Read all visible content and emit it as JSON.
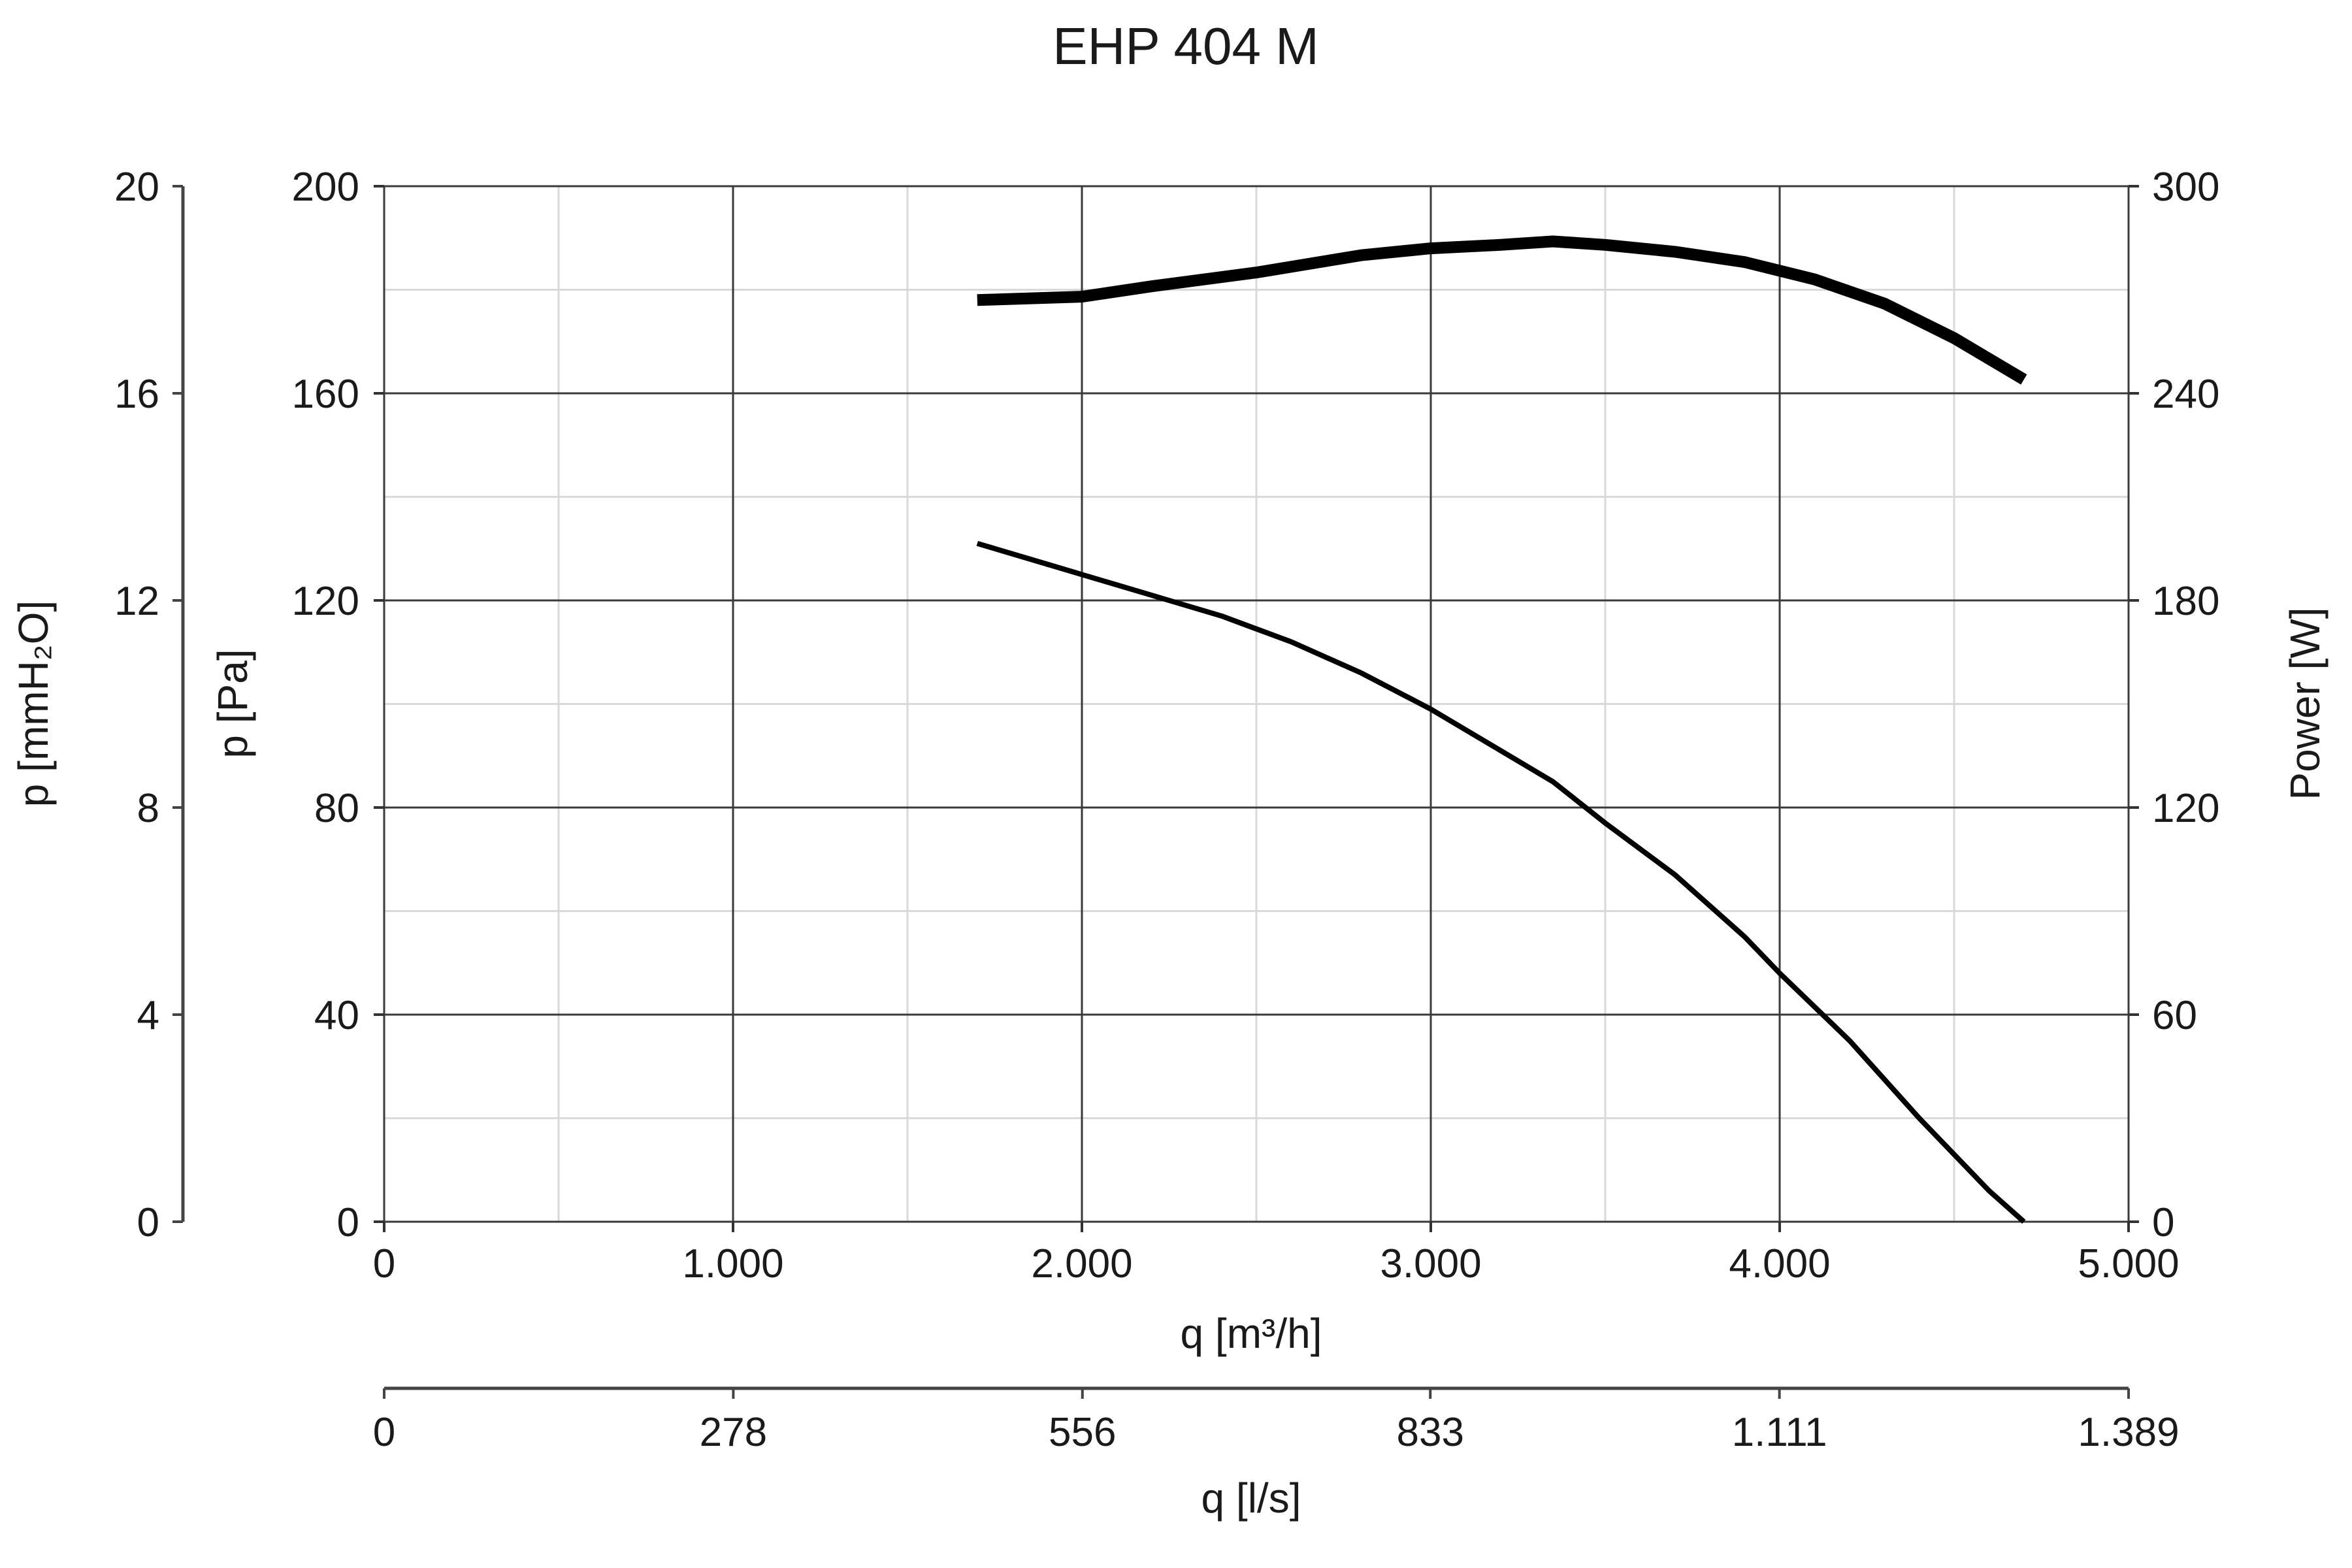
{
  "chart_data": {
    "type": "line",
    "title": "EHP 404 M",
    "grid": true,
    "x_axis": {
      "label": "q [m³/h]",
      "range": [
        0,
        5000
      ],
      "ticks": [
        0,
        1000,
        2000,
        3000,
        4000,
        5000
      ],
      "tick_labels": [
        "0",
        "1.000",
        "2.000",
        "3.000",
        "4.000",
        "5.000"
      ]
    },
    "x2_axis": {
      "label": "q [l/s]",
      "range": [
        0,
        1389
      ],
      "ticks": [
        0,
        278,
        556,
        833,
        1111,
        1389
      ],
      "tick_labels": [
        "0",
        "278",
        "556",
        "833",
        "1.111",
        "1.389"
      ]
    },
    "y_axis": {
      "label": "p [Pa]",
      "range": [
        0,
        200
      ],
      "ticks": [
        0,
        40,
        80,
        120,
        160,
        200
      ],
      "tick_labels": [
        "0",
        "40",
        "80",
        "120",
        "160",
        "200"
      ]
    },
    "y_mm_axis": {
      "label": "p [mmH₂O]",
      "range": [
        0,
        20
      ],
      "ticks": [
        0,
        4,
        8,
        12,
        16,
        20
      ],
      "tick_labels": [
        "0",
        "4",
        "8",
        "12",
        "16",
        "20"
      ]
    },
    "y_power_axis": {
      "label": "Power [W]",
      "range": [
        0,
        300
      ],
      "ticks": [
        0,
        60,
        120,
        180,
        240,
        300
      ],
      "tick_labels": [
        "0",
        "60",
        "120",
        "180",
        "240",
        "300"
      ]
    },
    "series": [
      {
        "axis": "power",
        "x": [
          1700,
          2000,
          2200,
          2500,
          2800,
          3000,
          3200,
          3350,
          3500,
          3700,
          3900,
          4100,
          4300,
          4500,
          4700
        ],
        "values": [
          267,
          268,
          271,
          275,
          280,
          282,
          283,
          284,
          283,
          281,
          278,
          273,
          266,
          256,
          244
        ]
      },
      {
        "axis": "pressure",
        "x": [
          1700,
          1900,
          2000,
          2200,
          2400,
          2600,
          2800,
          3000,
          3200,
          3350,
          3500,
          3700,
          3900,
          4000,
          4200,
          4400,
          4600,
          4700
        ],
        "values": [
          131,
          127,
          125,
          121,
          117,
          112,
          106,
          99,
          91,
          85,
          77,
          67,
          55,
          48,
          35,
          20,
          6,
          0
        ]
      }
    ]
  }
}
